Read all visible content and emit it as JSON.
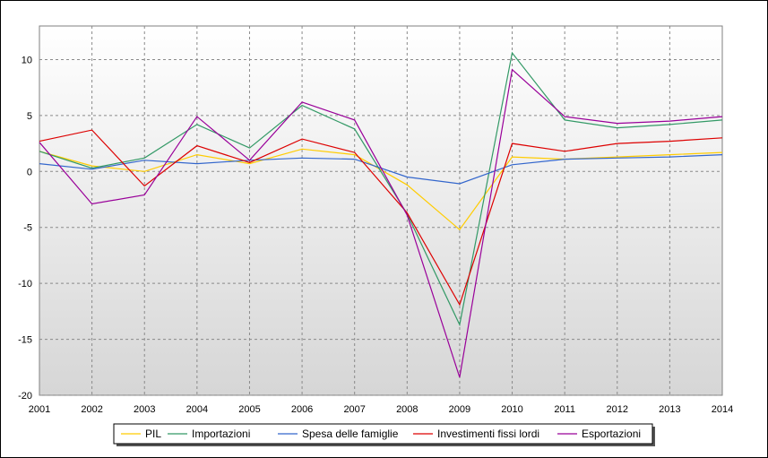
{
  "chart_data": {
    "type": "line",
    "title": "",
    "xlabel": "",
    "ylabel": "",
    "x": [
      "2001",
      "2002",
      "2003",
      "2004",
      "2005",
      "2006",
      "2007",
      "2008",
      "2009",
      "2010",
      "2011",
      "2012",
      "2013",
      "2014"
    ],
    "ylim": [
      -20,
      13
    ],
    "yticks": [
      10,
      5,
      0,
      -5,
      -10,
      -15,
      -20
    ],
    "grid": true,
    "legend_position": "bottom-center",
    "series": [
      {
        "name": "PIL",
        "color": "#ffcc00",
        "values": [
          1.8,
          0.5,
          0.0,
          1.5,
          0.7,
          2.0,
          1.5,
          -1.2,
          -5.2,
          1.3,
          1.1,
          1.3,
          1.5,
          1.7
        ]
      },
      {
        "name": "Importazioni",
        "color": "#339966",
        "values": [
          1.8,
          0.3,
          1.2,
          4.2,
          2.1,
          5.9,
          3.8,
          -3.8,
          -13.7,
          10.6,
          4.6,
          3.9,
          4.2,
          4.6
        ]
      },
      {
        "name": "Spesa delle famiglie",
        "color": "#3366cc",
        "values": [
          0.7,
          0.2,
          1.0,
          0.7,
          1.0,
          1.2,
          1.1,
          -0.5,
          -1.1,
          0.6,
          1.1,
          1.2,
          1.3,
          1.5
        ]
      },
      {
        "name": "Investimenti fissi lordi",
        "color": "#dd0000",
        "values": [
          2.7,
          3.7,
          -1.3,
          2.3,
          0.8,
          2.9,
          1.7,
          -3.7,
          -11.9,
          2.5,
          1.8,
          2.5,
          2.7,
          3.0
        ]
      },
      {
        "name": "Esportazioni",
        "color": "#990099",
        "values": [
          2.6,
          -2.9,
          -2.1,
          4.9,
          1.0,
          6.2,
          4.6,
          -3.9,
          -18.4,
          9.1,
          4.9,
          4.3,
          4.5,
          4.9
        ]
      }
    ]
  }
}
